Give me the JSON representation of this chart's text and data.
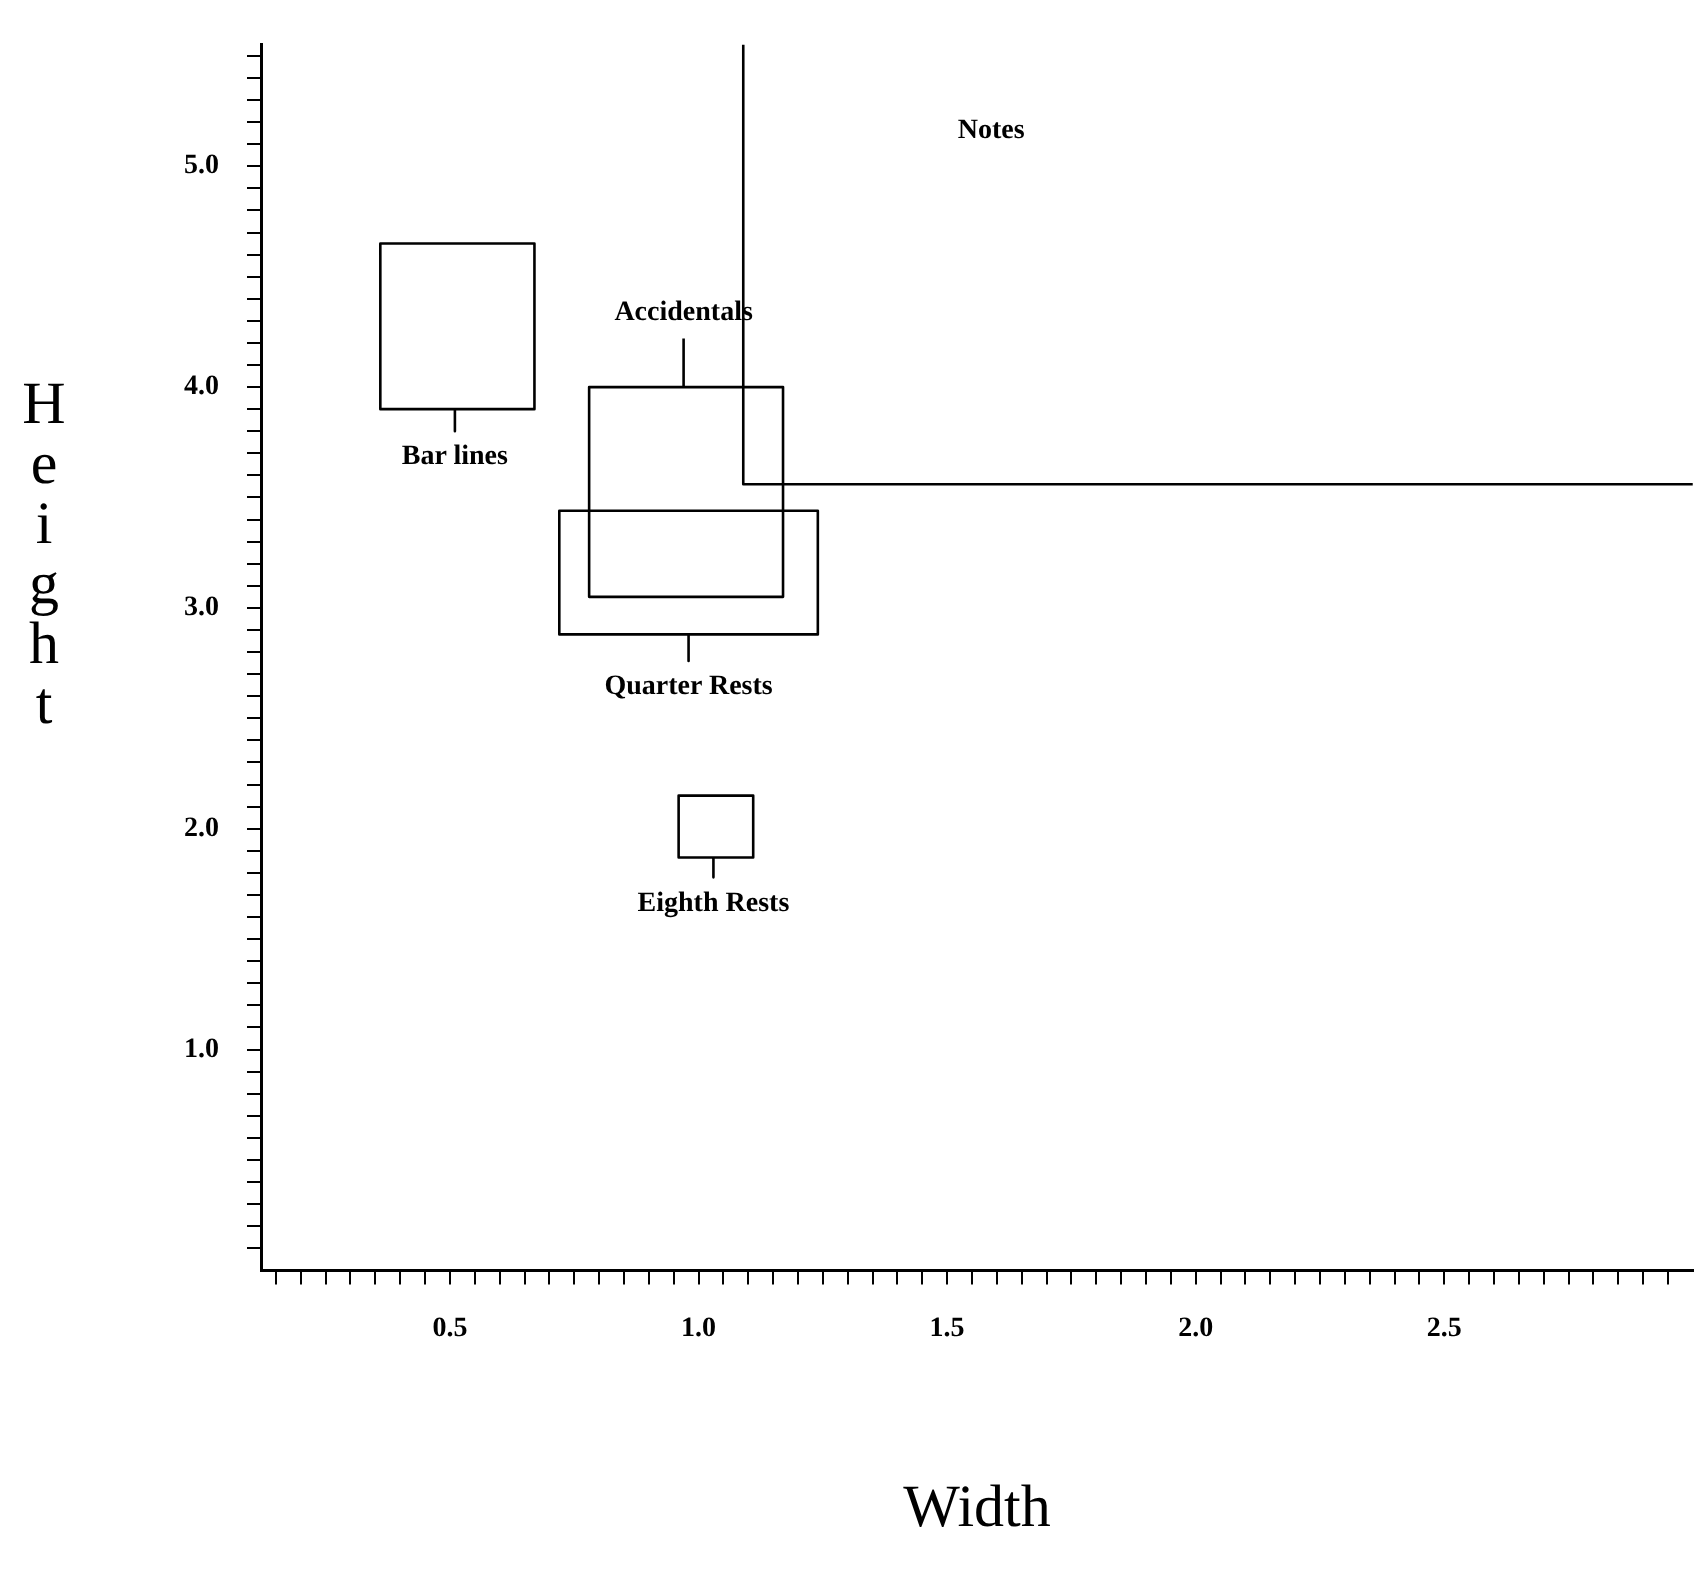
{
  "chart_data": {
    "type": "line",
    "xlabel": "Width",
    "ylabel": "Height",
    "xlim": [
      0.12,
      3.0
    ],
    "ylim": [
      0,
      5.55
    ],
    "xticks": [
      {
        "value": 0.15,
        "label": null
      },
      {
        "value": 0.2,
        "label": null
      },
      {
        "value": 0.25,
        "label": null
      },
      {
        "value": 0.3,
        "label": null
      },
      {
        "value": 0.35,
        "label": null
      },
      {
        "value": 0.4,
        "label": null
      },
      {
        "value": 0.45,
        "label": null
      },
      {
        "value": 0.5,
        "label": "0.5"
      },
      {
        "value": 0.55,
        "label": null
      },
      {
        "value": 0.6,
        "label": null
      },
      {
        "value": 0.65,
        "label": null
      },
      {
        "value": 0.7,
        "label": null
      },
      {
        "value": 0.75,
        "label": null
      },
      {
        "value": 0.8,
        "label": null
      },
      {
        "value": 0.85,
        "label": null
      },
      {
        "value": 0.9,
        "label": null
      },
      {
        "value": 0.95,
        "label": null
      },
      {
        "value": 1.0,
        "label": "1.0"
      },
      {
        "value": 1.05,
        "label": null
      },
      {
        "value": 1.1,
        "label": null
      },
      {
        "value": 1.15,
        "label": null
      },
      {
        "value": 1.2,
        "label": null
      },
      {
        "value": 1.25,
        "label": null
      },
      {
        "value": 1.3,
        "label": null
      },
      {
        "value": 1.35,
        "label": null
      },
      {
        "value": 1.4,
        "label": null
      },
      {
        "value": 1.45,
        "label": null
      },
      {
        "value": 1.5,
        "label": "1.5"
      },
      {
        "value": 1.55,
        "label": null
      },
      {
        "value": 1.6,
        "label": null
      },
      {
        "value": 1.65,
        "label": null
      },
      {
        "value": 1.7,
        "label": null
      },
      {
        "value": 1.75,
        "label": null
      },
      {
        "value": 1.8,
        "label": null
      },
      {
        "value": 1.85,
        "label": null
      },
      {
        "value": 1.9,
        "label": null
      },
      {
        "value": 1.95,
        "label": null
      },
      {
        "value": 2.0,
        "label": "2.0"
      },
      {
        "value": 2.05,
        "label": null
      },
      {
        "value": 2.1,
        "label": null
      },
      {
        "value": 2.15,
        "label": null
      },
      {
        "value": 2.2,
        "label": null
      },
      {
        "value": 2.25,
        "label": null
      },
      {
        "value": 2.3,
        "label": null
      },
      {
        "value": 2.35,
        "label": null
      },
      {
        "value": 2.4,
        "label": null
      },
      {
        "value": 2.45,
        "label": null
      },
      {
        "value": 2.5,
        "label": "2.5"
      },
      {
        "value": 2.55,
        "label": null
      },
      {
        "value": 2.6,
        "label": null
      },
      {
        "value": 2.65,
        "label": null
      },
      {
        "value": 2.7,
        "label": null
      },
      {
        "value": 2.75,
        "label": null
      },
      {
        "value": 2.8,
        "label": null
      },
      {
        "value": 2.85,
        "label": null
      },
      {
        "value": 2.9,
        "label": null
      },
      {
        "value": 2.95,
        "label": null
      }
    ],
    "yticks": [
      {
        "value": 0.1,
        "label": null
      },
      {
        "value": 0.2,
        "label": null
      },
      {
        "value": 0.3,
        "label": null
      },
      {
        "value": 0.4,
        "label": null
      },
      {
        "value": 0.5,
        "label": null
      },
      {
        "value": 0.6,
        "label": null
      },
      {
        "value": 0.7,
        "label": null
      },
      {
        "value": 0.8,
        "label": null
      },
      {
        "value": 0.9,
        "label": null
      },
      {
        "value": 1.0,
        "label": "1.0"
      },
      {
        "value": 1.1,
        "label": null
      },
      {
        "value": 1.2,
        "label": null
      },
      {
        "value": 1.3,
        "label": null
      },
      {
        "value": 1.4,
        "label": null
      },
      {
        "value": 1.5,
        "label": null
      },
      {
        "value": 1.6,
        "label": null
      },
      {
        "value": 1.7,
        "label": null
      },
      {
        "value": 1.8,
        "label": null
      },
      {
        "value": 1.9,
        "label": null
      },
      {
        "value": 2.0,
        "label": "2.0"
      },
      {
        "value": 2.1,
        "label": null
      },
      {
        "value": 2.2,
        "label": null
      },
      {
        "value": 2.3,
        "label": null
      },
      {
        "value": 2.4,
        "label": null
      },
      {
        "value": 2.5,
        "label": null
      },
      {
        "value": 2.6,
        "label": null
      },
      {
        "value": 2.7,
        "label": null
      },
      {
        "value": 2.8,
        "label": null
      },
      {
        "value": 2.9,
        "label": null
      },
      {
        "value": 3.0,
        "label": "3.0"
      },
      {
        "value": 3.1,
        "label": null
      },
      {
        "value": 3.2,
        "label": null
      },
      {
        "value": 3.3,
        "label": null
      },
      {
        "value": 3.4,
        "label": null
      },
      {
        "value": 3.5,
        "label": null
      },
      {
        "value": 3.6,
        "label": null
      },
      {
        "value": 3.7,
        "label": null
      },
      {
        "value": 3.8,
        "label": null
      },
      {
        "value": 3.9,
        "label": null
      },
      {
        "value": 4.0,
        "label": "4.0"
      },
      {
        "value": 4.1,
        "label": null
      },
      {
        "value": 4.2,
        "label": null
      },
      {
        "value": 4.3,
        "label": null
      },
      {
        "value": 4.4,
        "label": null
      },
      {
        "value": 4.5,
        "label": null
      },
      {
        "value": 4.6,
        "label": null
      },
      {
        "value": 4.7,
        "label": null
      },
      {
        "value": 4.8,
        "label": null
      },
      {
        "value": 4.9,
        "label": null
      },
      {
        "value": 5.0,
        "label": "5.0"
      },
      {
        "value": 5.1,
        "label": null
      },
      {
        "value": 5.2,
        "label": null
      },
      {
        "value": 5.3,
        "label": null
      },
      {
        "value": 5.4,
        "label": null
      },
      {
        "value": 5.5,
        "label": null
      }
    ],
    "grid": false,
    "legend": false,
    "marker": "none",
    "line_style": "solid",
    "series": [
      {
        "name": "Bar lines",
        "color": "#000000",
        "x": [
          0.51,
          0.36,
          0.36,
          0.67,
          0.67,
          0.51,
          0.51
        ],
        "values": [
          3.9,
          3.9,
          4.65,
          4.65,
          3.9,
          3.9,
          3.8
        ]
      },
      {
        "name": "Accidentals",
        "color": "#000000",
        "x": [
          0.97,
          0.78,
          0.78,
          1.17,
          1.17,
          0.97,
          0.97
        ],
        "values": [
          4.0,
          4.0,
          3.05,
          3.05,
          4.0,
          4.0,
          4.22
        ]
      },
      {
        "name": "Quarter Rests",
        "color": "#000000",
        "x": [
          0.98,
          0.72,
          0.72,
          1.24,
          1.24,
          0.98,
          0.98
        ],
        "values": [
          2.88,
          2.88,
          3.44,
          3.44,
          2.88,
          2.88,
          2.76
        ]
      },
      {
        "name": "Eighth Rests",
        "color": "#000000",
        "x": [
          1.03,
          0.96,
          0.96,
          1.11,
          1.11,
          1.03,
          1.03
        ],
        "values": [
          1.87,
          1.87,
          2.15,
          2.15,
          1.87,
          1.87,
          1.78
        ]
      },
      {
        "color": "#000000",
        "x": [
          1.09,
          1.09,
          3.0
        ],
        "values": [
          5.55,
          3.56,
          3.56
        ]
      }
    ],
    "annotations": [
      "Notes"
    ]
  }
}
